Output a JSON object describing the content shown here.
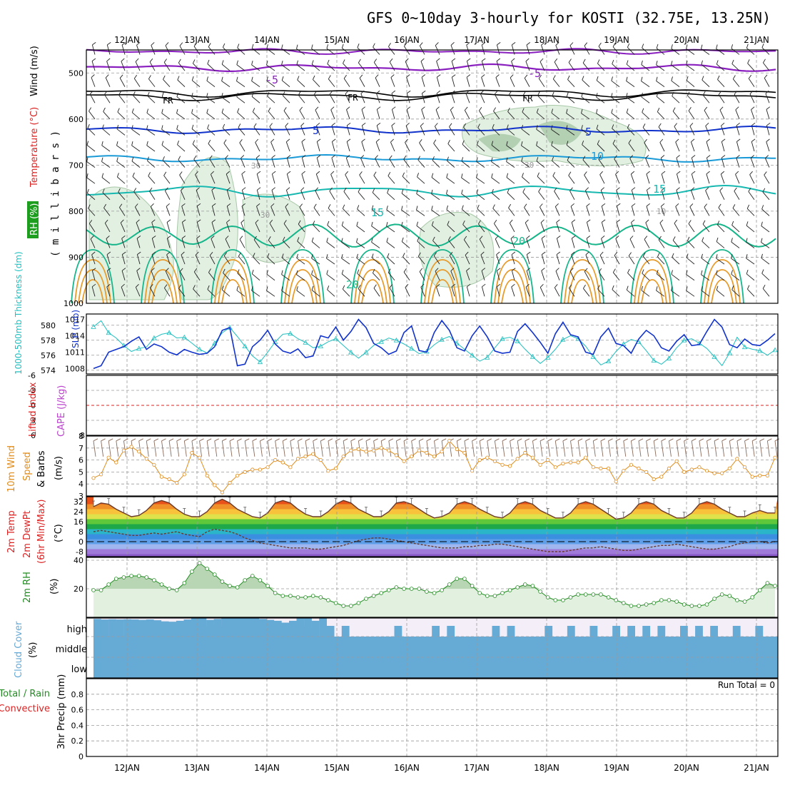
{
  "header": {
    "title": "GFS 0~10day 3-hourly for KOSTI (32.75E, 13.25N)"
  },
  "colors": {
    "temperature_label": "#dd2222",
    "wind_label": "#000000",
    "thickness": "#1fbfbf",
    "slp": "#1133cc",
    "lifted_index": "#dd2222",
    "cape": "#bb44cc",
    "wind10m": "#e08c1a",
    "rh": "#228b22",
    "cloud": "#66aad6",
    "precip_total": "#228b22",
    "precip_conv": "#dd2222",
    "iso_minus5": "#8a1fbf",
    "iso_fr": "#000000",
    "iso_5": "#1133cc",
    "iso_10": "#1a9ad6",
    "iso_15": "#16b8b0",
    "iso_20": "#17b58a",
    "iso_warm": "#e89b2a"
  },
  "chart_data": [
    {
      "type": "heatmap",
      "panel": "upper-air",
      "xticks": [
        "12JAN",
        "13JAN",
        "14JAN",
        "15JAN",
        "16JAN",
        "17JAN",
        "18JAN",
        "19JAN",
        "20JAN",
        "21JAN"
      ],
      "ylabel_a": "Wind (m/s)",
      "ylabel_b": "Temperature (°C)",
      "ylabel_c": "RH (%)",
      "ylabel_d": "( m i l l i b a r s )",
      "yticks": [
        "500",
        "600",
        "700",
        "800",
        "900",
        "1000"
      ],
      "ylim": [
        1000,
        450
      ],
      "isotherm_labels": [
        "-5",
        "-5",
        "FR",
        "FR",
        "FR",
        "5",
        "5",
        "10",
        "15",
        "15",
        "20",
        "20"
      ],
      "rh_labels": [
        "30",
        "30",
        "30",
        "10"
      ]
    },
    {
      "type": "line",
      "panel": "thickness-slp",
      "ylabel_thk": "1000-500mb Thickness (dm)",
      "ylabel_slp": "SLP (mb)",
      "yticks_thk": [
        "574",
        "576",
        "578",
        "580"
      ],
      "yticks_slp": [
        "1008",
        "1011",
        "1014",
        "1017"
      ],
      "ylim_thk": [
        573.5,
        581.5
      ],
      "ylim_slp": [
        1007,
        1018
      ],
      "series": [
        {
          "name": "Thickness",
          "values": [
            579.8,
            580.6,
            579.0,
            578.3,
            577.3,
            576.5,
            576.9,
            577.1,
            578.3,
            578.8,
            579.0,
            578.3,
            578.4,
            577.6,
            576.8,
            576.3,
            577.6,
            579.0,
            579.7,
            578.5,
            577.2,
            575.9,
            575.1,
            576.4,
            577.8,
            578.8,
            578.9,
            578.2,
            577.7,
            577.0,
            577.2,
            577.8,
            578.2,
            577.3,
            576.4,
            575.6,
            576.4,
            577.3,
            577.8,
            578.3,
            578.0,
            577.5,
            576.9,
            576.2,
            576.5,
            577.4,
            578.1,
            578.5,
            577.6,
            576.8,
            576.0,
            575.2,
            575.7,
            577.0,
            578.2,
            578.4,
            577.9,
            576.8,
            575.8,
            574.9,
            575.7,
            576.8,
            578.1,
            578.6,
            578.2,
            577.2,
            575.8,
            574.7,
            575.2,
            576.5,
            577.5,
            578.1,
            577.8,
            576.6,
            575.3,
            574.8,
            575.6,
            577.0,
            578.0,
            578.2,
            577.6,
            576.9,
            575.8,
            574.6,
            576.3,
            578.4,
            577.1,
            576.8,
            576.6,
            576.0,
            576.7
          ]
        },
        {
          "name": "SLP",
          "values": [
            1008.0,
            1008.5,
            1011.0,
            1011.5,
            1012.0,
            1013.0,
            1013.8,
            1011.5,
            1012.5,
            1012.0,
            1011.0,
            1010.5,
            1011.5,
            1011.0,
            1010.6,
            1010.8,
            1012.0,
            1015.0,
            1015.5,
            1008.5,
            1008.8,
            1012.0,
            1013.2,
            1015.0,
            1012.5,
            1011.2,
            1010.8,
            1011.6,
            1010.0,
            1010.3,
            1014.0,
            1013.6,
            1015.6,
            1013.2,
            1014.8,
            1017.0,
            1015.5,
            1012.6,
            1011.8,
            1010.6,
            1011.2,
            1014.6,
            1015.8,
            1011.3,
            1011.0,
            1014.6,
            1016.8,
            1015.0,
            1011.8,
            1011.2,
            1014.0,
            1015.8,
            1013.8,
            1011.2,
            1010.8,
            1011.0,
            1014.8,
            1016.2,
            1014.6,
            1012.8,
            1010.8,
            1014.4,
            1016.5,
            1014.2,
            1013.8,
            1011.0,
            1010.6,
            1013.8,
            1015.4,
            1012.6,
            1012.2,
            1010.8,
            1013.4,
            1015.0,
            1014.0,
            1011.8,
            1011.2,
            1013.0,
            1014.2,
            1012.2,
            1012.4,
            1014.8,
            1017.0,
            1015.6,
            1012.4,
            1011.8,
            1013.4,
            1012.4,
            1012.2,
            1013.2,
            1014.4
          ]
        }
      ]
    },
    {
      "type": "line",
      "panel": "stability",
      "ylabel_li": "Lifted Index",
      "ylabel_cape": "CAPE (J/kg)",
      "yticks_li": [
        "-6",
        "-3",
        "0",
        "3",
        "6"
      ],
      "yticks_cape": [
        "8"
      ],
      "ylim": [
        6,
        -6
      ]
    },
    {
      "type": "line",
      "panel": "wind10m",
      "ylabel_a": "10m Wind",
      "ylabel_b": "Speed",
      "ylabel_c": "& Barbs",
      "ylabel_d": "(m/s)",
      "yticks": [
        "3",
        "4",
        "5",
        "6",
        "7",
        "8"
      ],
      "ylim": [
        3,
        8
      ],
      "series": [
        {
          "name": "Speed",
          "values": [
            4.5,
            4.8,
            6.2,
            5.8,
            6.8,
            7.1,
            6.7,
            6.1,
            5.6,
            4.6,
            4.4,
            4.1,
            4.8,
            6.6,
            6.2,
            4.7,
            3.9,
            3.3,
            4.1,
            4.7,
            5.0,
            5.2,
            5.2,
            5.4,
            6.0,
            5.8,
            5.4,
            6.1,
            6.3,
            6.5,
            6.0,
            5.1,
            5.3,
            6.3,
            6.8,
            6.9,
            6.7,
            6.8,
            7.0,
            6.8,
            6.4,
            5.9,
            6.3,
            6.8,
            6.6,
            6.3,
            6.7,
            7.6,
            6.9,
            6.6,
            5.1,
            6.0,
            6.2,
            5.9,
            5.6,
            5.5,
            6.1,
            6.6,
            6.2,
            5.6,
            6.0,
            5.4,
            5.7,
            5.8,
            5.8,
            6.2,
            5.4,
            5.3,
            5.3,
            4.2,
            5.1,
            5.6,
            5.3,
            5.0,
            4.4,
            4.6,
            5.3,
            5.9,
            5.0,
            5.2,
            5.4,
            5.1,
            4.9,
            4.9,
            5.3,
            6.1,
            5.4,
            4.6,
            4.7,
            4.7,
            6.2
          ]
        }
      ]
    },
    {
      "type": "area",
      "panel": "temperature",
      "ylabel_a": "2m Temp",
      "ylabel_b": "2m DewPt",
      "ylabel_c": "(6hr Min/Max)",
      "ylabel_d": "(°C)",
      "yticks": [
        "32",
        "24",
        "16",
        "8",
        "0",
        "-8"
      ],
      "ylim": [
        -12,
        36
      ],
      "series": [
        {
          "name": "Temp",
          "values": [
            28,
            31,
            30,
            26,
            23,
            20,
            21,
            25,
            31,
            33,
            31,
            26,
            22,
            20,
            20,
            24,
            31,
            34,
            31,
            26,
            23,
            20,
            19,
            23,
            31,
            33,
            31,
            26,
            22,
            20,
            20,
            24,
            30,
            33,
            31,
            26,
            23,
            20,
            20,
            24,
            31,
            32,
            30,
            26,
            22,
            19,
            20,
            23,
            30,
            32,
            30,
            26,
            23,
            20,
            19,
            23,
            30,
            32,
            30,
            25,
            22,
            19,
            19,
            23,
            30,
            32,
            30,
            26,
            22,
            18,
            19,
            23,
            30,
            32,
            30,
            25,
            22,
            19,
            19,
            23,
            30,
            32,
            30,
            26,
            23,
            20,
            20,
            23,
            25,
            23,
            23
          ]
        },
        {
          "name": "DewPt",
          "values": [
            8,
            9,
            8,
            7,
            6,
            5,
            5,
            6,
            7,
            6,
            7,
            8,
            6,
            5,
            4,
            8,
            10,
            9,
            8,
            6,
            3,
            1,
            -1,
            -2,
            -3,
            -4,
            -5,
            -5,
            -5,
            -6,
            -6,
            -5,
            -4,
            -3,
            -1,
            1,
            2,
            3,
            3,
            2,
            1,
            0,
            -1,
            -2,
            -3,
            -4,
            -5,
            -5,
            -5,
            -4,
            -4,
            -3,
            -3,
            -2,
            -2,
            -3,
            -4,
            -5,
            -6,
            -7,
            -8,
            -8,
            -8,
            -7,
            -6,
            -5,
            -5,
            -4,
            -5,
            -6,
            -7,
            -7,
            -6,
            -5,
            -4,
            -3,
            -3,
            -2,
            -3,
            -4,
            -5,
            -6,
            -6,
            -5,
            -4,
            -2,
            -1,
            0,
            0,
            -1,
            0
          ]
        }
      ]
    },
    {
      "type": "area",
      "panel": "rh2m",
      "ylabel_a": "2m RH",
      "ylabel_b": "(%)",
      "yticks": [
        "40",
        "20"
      ],
      "ylim": [
        0,
        42
      ],
      "series": [
        {
          "name": "RH",
          "values": [
            19,
            19,
            23,
            27,
            28,
            29,
            29,
            28,
            26,
            23,
            20,
            19,
            24,
            32,
            38,
            34,
            30,
            25,
            22,
            21,
            26,
            29,
            26,
            22,
            17,
            15,
            15,
            14,
            14,
            15,
            14,
            12,
            10,
            8,
            8,
            10,
            13,
            15,
            17,
            19,
            21,
            20,
            20,
            20,
            18,
            17,
            19,
            23,
            27,
            27,
            22,
            17,
            15,
            15,
            17,
            19,
            21,
            23,
            22,
            18,
            14,
            12,
            12,
            14,
            16,
            16,
            16,
            16,
            14,
            12,
            10,
            8,
            8,
            9,
            10,
            12,
            12,
            11,
            9,
            8,
            8,
            9,
            13,
            16,
            15,
            12,
            11,
            14,
            19,
            24,
            22
          ]
        }
      ]
    },
    {
      "type": "bar",
      "panel": "cloud",
      "ylabel_a": "Cloud Cover",
      "ylabel_b": "(%)",
      "yticks": [
        "high",
        "middle",
        "low"
      ],
      "series": [
        {
          "name": "High",
          "values": [
            100,
            100,
            100,
            100,
            100,
            100,
            100,
            100,
            100,
            100,
            100,
            100,
            100,
            100,
            100,
            100,
            100,
            100,
            100,
            100,
            100,
            100,
            100,
            100,
            100,
            100,
            100,
            100,
            100,
            100,
            100,
            100,
            100,
            100,
            100,
            100,
            100,
            100,
            100,
            100,
            100,
            100,
            100,
            100,
            100,
            100,
            100,
            100,
            100,
            100,
            100,
            100,
            100,
            100,
            100,
            100,
            100,
            100,
            100,
            100,
            100,
            100,
            100,
            100,
            100,
            100,
            100,
            100,
            100,
            100,
            100,
            100,
            100,
            100,
            100,
            100,
            100,
            100,
            100,
            100,
            100,
            100,
            100,
            100,
            100,
            100,
            100,
            100,
            100,
            100,
            100
          ]
        },
        {
          "name": "HighCover",
          "values": [
            95,
            92,
            93,
            92,
            93,
            92,
            90,
            92,
            88,
            82,
            80,
            85,
            92,
            100,
            100,
            90,
            95,
            100,
            100,
            100,
            100,
            100,
            95,
            90,
            85,
            75,
            85,
            100,
            100,
            85,
            100,
            0,
            0,
            0,
            0,
            0,
            0,
            0,
            0,
            0,
            0,
            0,
            0,
            0,
            0,
            0,
            0,
            0,
            0,
            0,
            0,
            0,
            0,
            0,
            0,
            0,
            0,
            0,
            0,
            0,
            0,
            0,
            0,
            0,
            0,
            0,
            0,
            0,
            0,
            0,
            0,
            0,
            0,
            0,
            0,
            0,
            0,
            0,
            0,
            0,
            0,
            0,
            0,
            0,
            0,
            0,
            0,
            0,
            0,
            0,
            0
          ]
        }
      ]
    },
    {
      "type": "bar",
      "panel": "precip",
      "ylabel_a": "Total / Rain",
      "ylabel_b": "Convective",
      "ylabel_c": "3hr Precip (mm)",
      "yticks": [
        "0",
        "0.2",
        "0.4",
        "0.6",
        "0.8"
      ],
      "ylim": [
        0,
        1.0
      ],
      "run_total": "Run Total = 0"
    }
  ]
}
